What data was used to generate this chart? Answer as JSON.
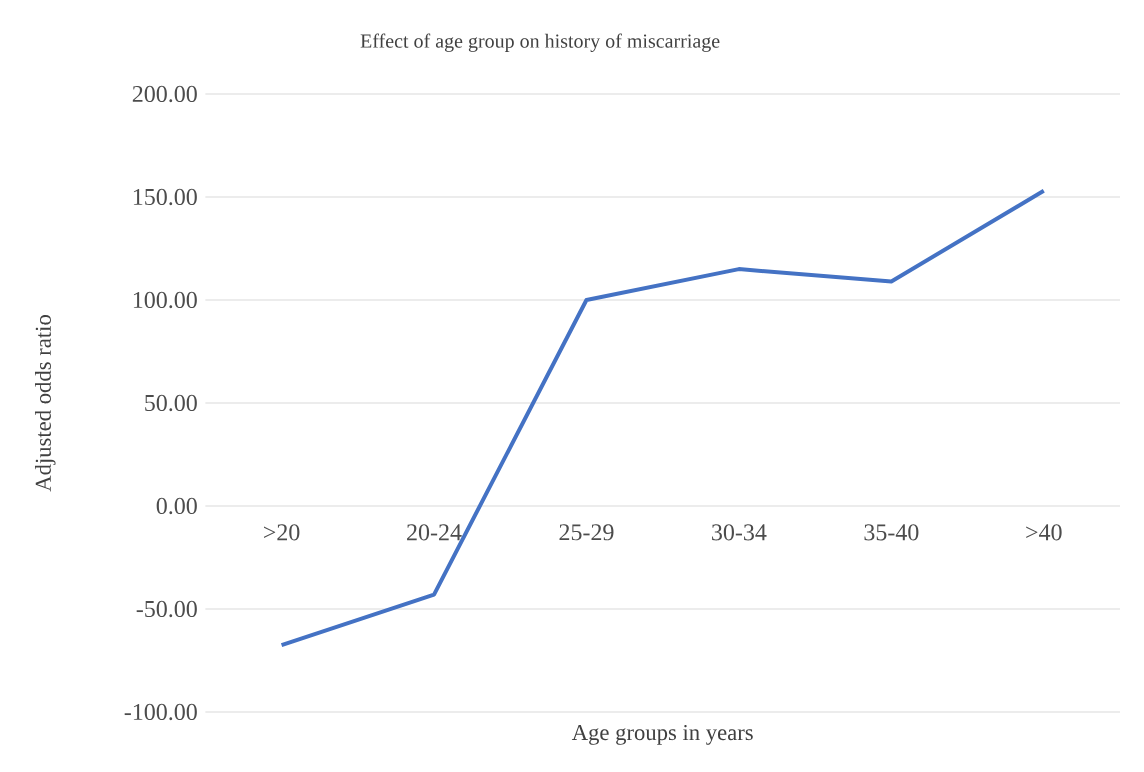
{
  "chart_data": {
    "type": "line",
    "title": "Effect of age group on history of miscarriage",
    "xlabel": "Age groups in years",
    "ylabel": "Adjusted odds ratio",
    "categories": [
      ">20",
      "20-24",
      "25-29",
      "30-34",
      "35-40",
      ">40"
    ],
    "values": [
      -67.5,
      -43,
      100,
      115,
      109,
      153
    ],
    "color": "#4472c4",
    "ylim": [
      -100,
      200
    ],
    "yticks": [
      {
        "value": -100,
        "label": "-100.00"
      },
      {
        "value": -50,
        "label": "-50.00"
      },
      {
        "value": 0,
        "label": "0.00"
      },
      {
        "value": 50,
        "label": "50.00"
      },
      {
        "value": 100,
        "label": "100.00"
      },
      {
        "value": 150,
        "label": "150.00"
      },
      {
        "value": 200,
        "label": "200.00"
      }
    ],
    "grid": "y"
  }
}
